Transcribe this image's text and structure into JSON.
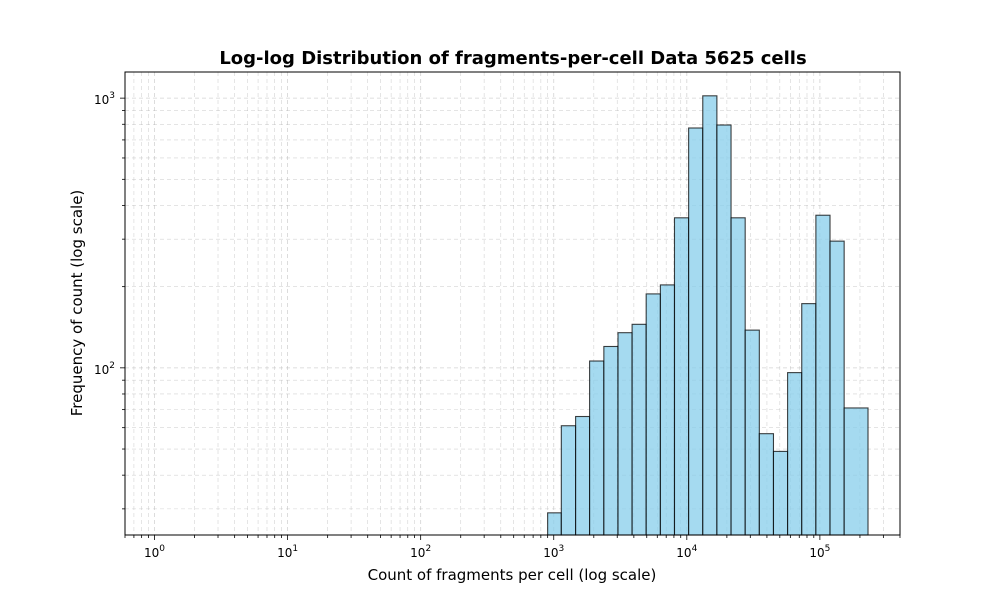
{
  "chart_data": {
    "type": "bar",
    "title": "Log-log Distribution of fragments-per-cell Data 5625 cells",
    "xlabel": "Count of fragments per cell (log scale)",
    "ylabel": "Frequency of count (log scale)",
    "x_scale": "log",
    "y_scale": "log",
    "xlim": [
      0.6,
      400000
    ],
    "ylim": [
      24,
      1250
    ],
    "grid": true,
    "colors": {
      "bar_fill": "#87ceeb",
      "bar_edge": "#000000",
      "grid": "#b0b0b0"
    },
    "x_ticks": [
      {
        "base": "10",
        "exp": "0"
      },
      {
        "base": "10",
        "exp": "1"
      },
      {
        "base": "10",
        "exp": "2"
      },
      {
        "base": "10",
        "exp": "3"
      },
      {
        "base": "10",
        "exp": "4"
      },
      {
        "base": "10",
        "exp": "5"
      }
    ],
    "y_ticks": [
      {
        "base": "10",
        "exp": "2"
      },
      {
        "base": "10",
        "exp": "3"
      }
    ],
    "bins": [
      {
        "x0": 900,
        "x1": 1140,
        "count": 29
      },
      {
        "x0": 1140,
        "x1": 1460,
        "count": 61
      },
      {
        "x0": 1460,
        "x1": 1860,
        "count": 66
      },
      {
        "x0": 1860,
        "x1": 2380,
        "count": 106
      },
      {
        "x0": 2380,
        "x1": 3040,
        "count": 120
      },
      {
        "x0": 3040,
        "x1": 3880,
        "count": 135
      },
      {
        "x0": 3880,
        "x1": 4950,
        "count": 145
      },
      {
        "x0": 4950,
        "x1": 6330,
        "count": 188
      },
      {
        "x0": 6330,
        "x1": 8080,
        "count": 203
      },
      {
        "x0": 8080,
        "x1": 10320,
        "count": 360
      },
      {
        "x0": 10320,
        "x1": 13180,
        "count": 775
      },
      {
        "x0": 13180,
        "x1": 16830,
        "count": 1020
      },
      {
        "x0": 16830,
        "x1": 21500,
        "count": 795
      },
      {
        "x0": 21500,
        "x1": 27460,
        "count": 360
      },
      {
        "x0": 27460,
        "x1": 35070,
        "count": 138
      },
      {
        "x0": 35070,
        "x1": 44790,
        "count": 57
      },
      {
        "x0": 44790,
        "x1": 57200,
        "count": 49
      },
      {
        "x0": 57200,
        "x1": 73060,
        "count": 96
      },
      {
        "x0": 73060,
        "x1": 93310,
        "count": 173
      },
      {
        "x0": 93310,
        "x1": 119170,
        "count": 368
      },
      {
        "x0": 119170,
        "x1": 152200,
        "count": 295
      },
      {
        "x0": 152200,
        "x1": 230000,
        "count": 71
      }
    ]
  }
}
